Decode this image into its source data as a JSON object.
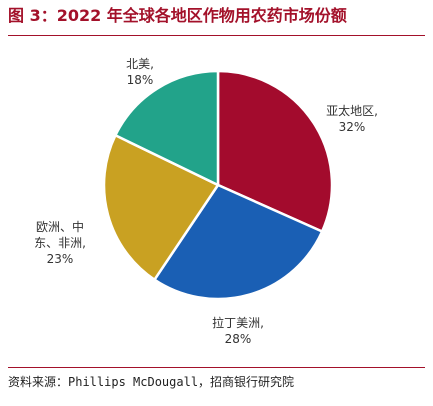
{
  "header": {
    "title": "图 3：2022 年全球各地区作物用农药市场份额"
  },
  "footer": {
    "source": "资料来源：Phillips McDougall，招商银行研究院"
  },
  "chart_data": {
    "type": "pie",
    "title": "图 3：2022 年全球各地区作物用农药市场份额",
    "slices": [
      {
        "label": [
          "亚太地区,"
        ],
        "value": 32,
        "value_label": "32%",
        "color": "#a30b2d"
      },
      {
        "label": [
          "拉丁美洲,"
        ],
        "value": 28,
        "value_label": "28%",
        "color": "#1a5fb4"
      },
      {
        "label": [
          "欧洲、中",
          "东、非洲,"
        ],
        "value": 23,
        "value_label": "23%",
        "color": "#c9a122"
      },
      {
        "label": [
          "北美,"
        ],
        "value": 18,
        "value_label": "18%",
        "color": "#22a38a"
      }
    ]
  }
}
